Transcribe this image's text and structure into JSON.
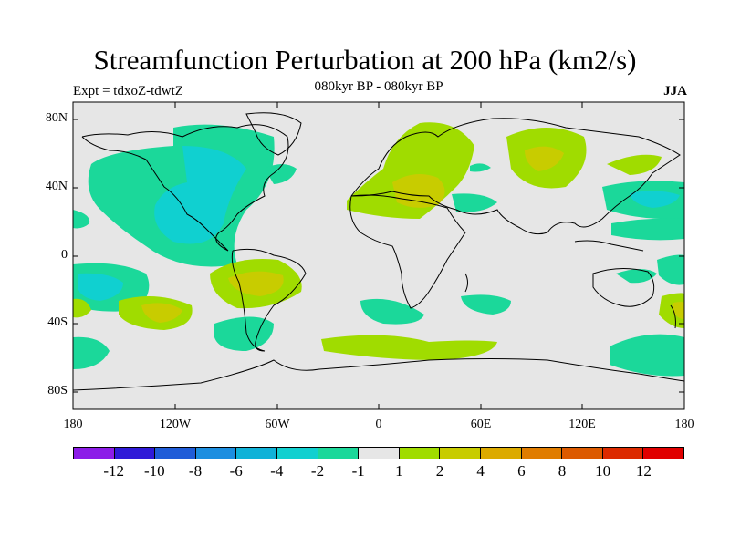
{
  "title": "Streamfunction Perturbation at 200 hPa (km2/s)",
  "experiment": "Expt = tdxoZ-tdwtZ",
  "period": "080kyr BP - 080kyr BP",
  "season": "JJA",
  "y_axis_labels": [
    "80N",
    "40N",
    "0",
    "40S",
    "80S"
  ],
  "x_axis_labels": [
    "180",
    "120W",
    "60W",
    "0",
    "60E",
    "120E",
    "180"
  ],
  "colorbar": {
    "labels": [
      "-12",
      "-10",
      "-8",
      "-6",
      "-4",
      "-2",
      "-1",
      "1",
      "2",
      "4",
      "6",
      "8",
      "10",
      "12"
    ],
    "colors": [
      "#8c1ce8",
      "#2f1ad8",
      "#1f5cd8",
      "#1c8ee0",
      "#0fb2d8",
      "#10d0d0",
      "#1bd89a",
      "#e6e6e6",
      "#a0dc00",
      "#c8cc00",
      "#dcaa00",
      "#e07c00",
      "#dc5a00",
      "#dc2a00",
      "#e00000"
    ]
  },
  "map": {
    "background": "#e6e6e6",
    "contour_field_colors": {
      "neg_1_2": "#1bd89a",
      "neg_2_4": "#10d0d0",
      "pos_1_2": "#a0dc00",
      "pos_2_4": "#c8cc00"
    }
  }
}
